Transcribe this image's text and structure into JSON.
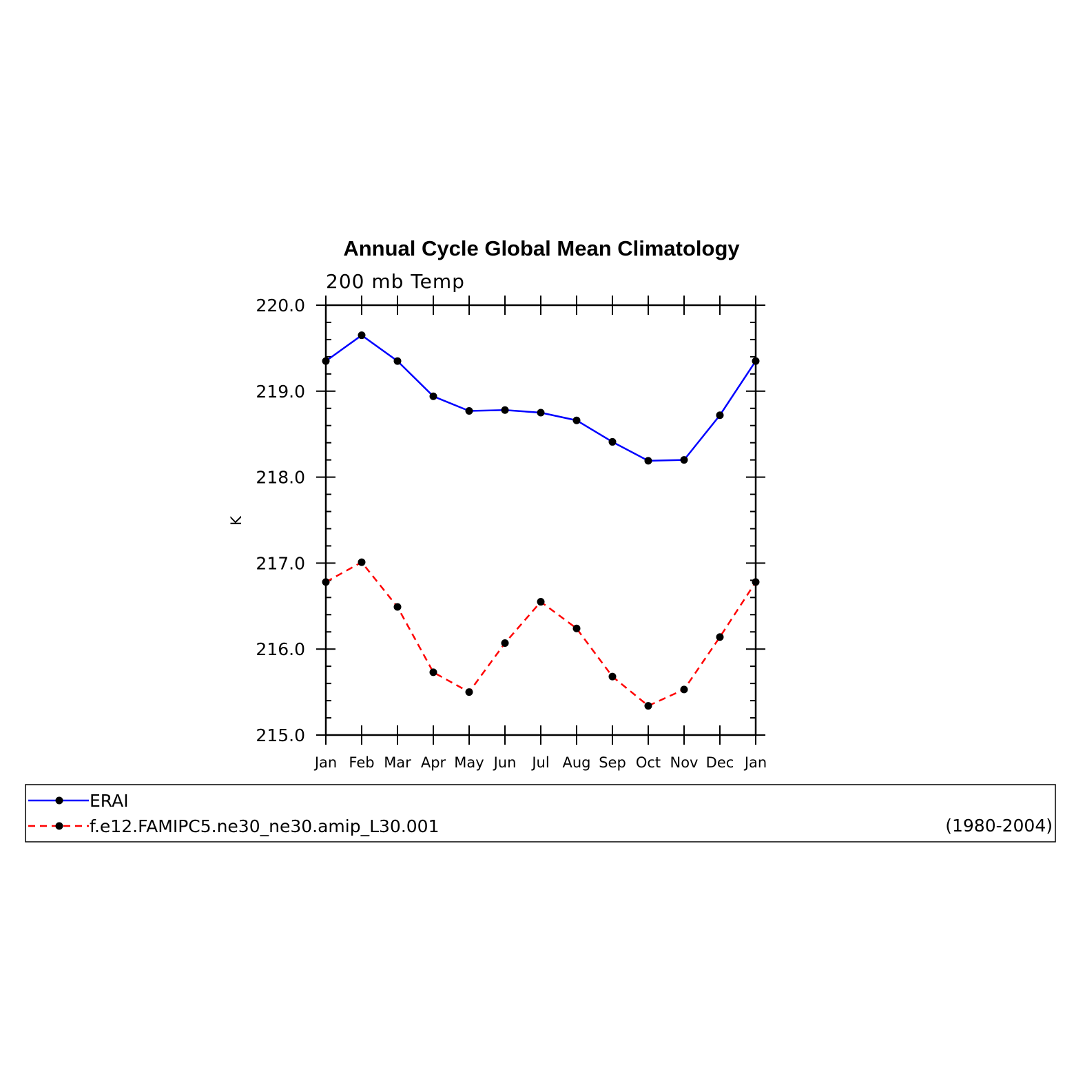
{
  "chart_data": {
    "type": "line",
    "title": "Annual Cycle Global Mean Climatology",
    "subtitle": "200 mb Temp",
    "xlabel": "",
    "ylabel": "K",
    "categories": [
      "Jan",
      "Feb",
      "Mar",
      "Apr",
      "May",
      "Jun",
      "Jul",
      "Aug",
      "Sep",
      "Oct",
      "Nov",
      "Dec",
      "Jan"
    ],
    "ylim": [
      215.0,
      220.0
    ],
    "yticks": [
      "215.0",
      "216.0",
      "217.0",
      "218.0",
      "219.0",
      "220.0"
    ],
    "grid": false,
    "legend_position": "bottom",
    "series": [
      {
        "name": "ERAI",
        "color": "#0000ff",
        "line_style": "solid",
        "marker": "circle",
        "values": [
          219.35,
          219.65,
          219.35,
          218.94,
          218.77,
          218.78,
          218.75,
          218.66,
          218.41,
          218.19,
          218.2,
          218.72,
          219.35
        ]
      },
      {
        "name": "f.e12.FAMIPC5.ne30_ne30.amip_L30.001",
        "color": "#ff0000",
        "line_style": "dashed",
        "marker": "circle",
        "values": [
          216.78,
          217.01,
          216.49,
          215.73,
          215.5,
          216.07,
          216.55,
          216.24,
          215.68,
          215.34,
          215.53,
          216.14,
          216.78
        ]
      }
    ],
    "annotations": [
      "(1980-2004)"
    ]
  }
}
